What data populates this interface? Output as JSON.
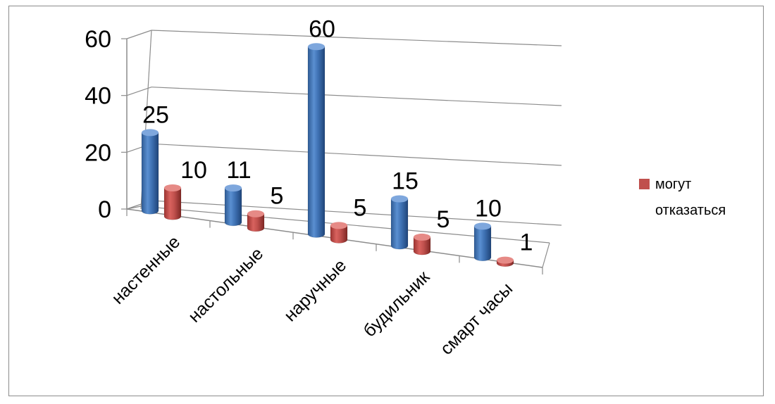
{
  "chart_data": {
    "type": "bar",
    "style": "3d-cylinder",
    "categories": [
      "настенные",
      "настольные",
      "наручные",
      "будильник",
      "смарт часы"
    ],
    "series": [
      {
        "values": [
          25,
          11,
          60,
          15,
          10
        ],
        "color": "#4f81bd"
      },
      {
        "name": "могут отказаться",
        "values": [
          10,
          5,
          5,
          5,
          1
        ],
        "color": "#c0504d"
      }
    ],
    "y_ticks": [
      "0",
      "20",
      "40",
      "60"
    ],
    "ylim": [
      0,
      60
    ],
    "grid": true,
    "legend_position": "right",
    "legend_lines": [
      "могут",
      "отказаться"
    ]
  }
}
